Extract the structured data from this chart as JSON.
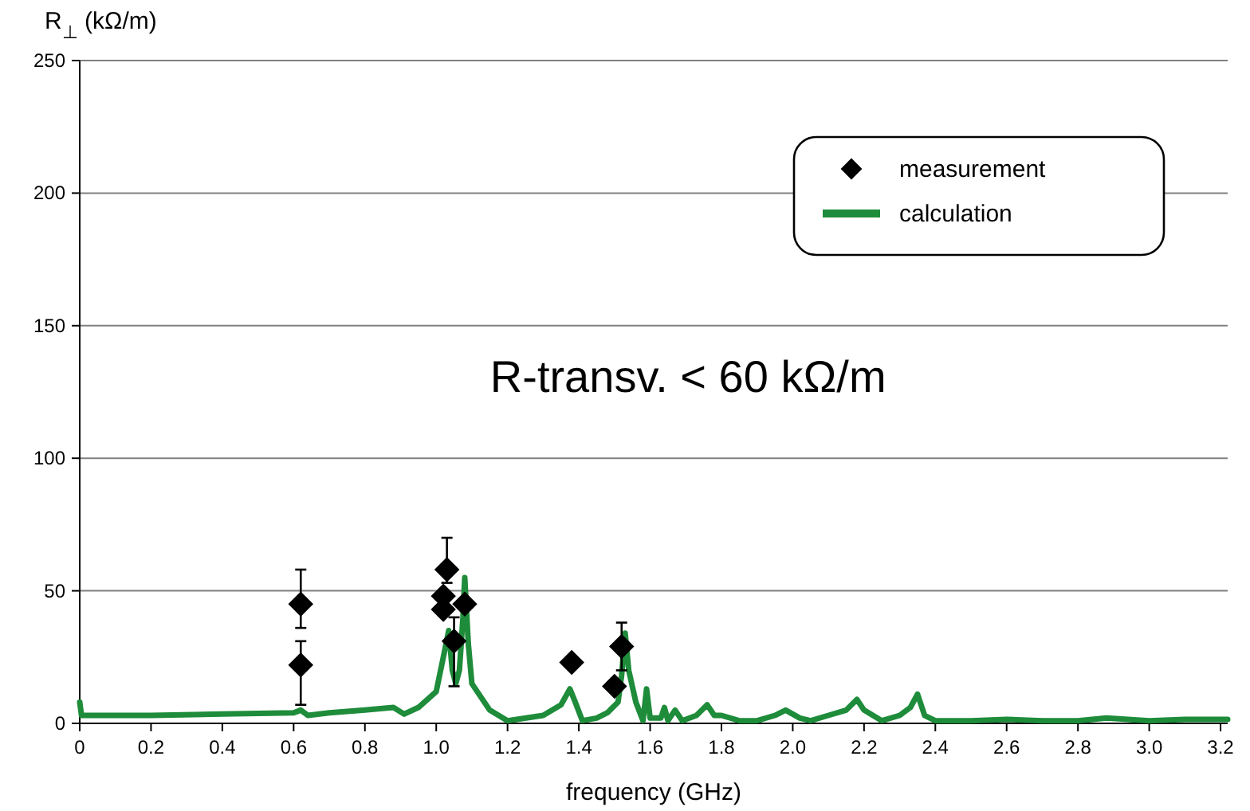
{
  "chart_data": {
    "type": "scatter",
    "xlabel": "frequency (GHz)",
    "ylabel": "R$_{⊥}$ (kΩ/m)",
    "annotations": [
      "R-transv. < 60 kΩ/m"
    ],
    "xlim": [
      0,
      3.22
    ],
    "xticks": [
      0,
      0.2,
      0.4,
      0.6,
      0.8,
      {
        "value": 1,
        "label": "1.0"
      },
      1.2,
      1.4,
      1.6,
      1.8,
      {
        "value": 2,
        "label": "2.0"
      },
      2.2,
      2.4,
      2.6,
      2.8,
      {
        "value": 3,
        "label": "3.0"
      },
      3.2
    ],
    "ylim": [
      0,
      250
    ],
    "yticks": [
      0,
      50,
      100,
      150,
      200,
      250
    ],
    "grid": "y",
    "legend": "top right",
    "series": [
      {
        "name": "measurement",
        "color": "#000000",
        "marker": "diamond",
        "x": [
          0.62,
          0.62,
          1.03,
          1.02,
          1.02,
          1.05,
          1.08,
          1.38,
          1.5,
          1.52
        ],
        "values": [
          45,
          22,
          58,
          48,
          43,
          31,
          45,
          23,
          14,
          29
        ],
        "errors": [
          [
            36,
            58
          ],
          [
            7,
            31
          ],
          [
            53,
            70
          ],
          null,
          null,
          [
            14,
            40
          ],
          null,
          null,
          null,
          [
            20,
            38
          ]
        ]
      },
      {
        "type": "line",
        "name": "calculation",
        "color": "#1e8c3a",
        "x": [
          0,
          0.005,
          0.2,
          0.4,
          0.6,
          0.62,
          0.64,
          0.7,
          0.8,
          0.88,
          0.91,
          0.95,
          1.0,
          1.02,
          1.035,
          1.045,
          1.055,
          1.065,
          1.075,
          1.08,
          1.09,
          1.1,
          1.15,
          1.2,
          1.3,
          1.35,
          1.375,
          1.39,
          1.41,
          1.45,
          1.48,
          1.51,
          1.52,
          1.53,
          1.54,
          1.56,
          1.58,
          1.59,
          1.6,
          1.63,
          1.64,
          1.65,
          1.67,
          1.69,
          1.73,
          1.76,
          1.78,
          1.8,
          1.85,
          1.9,
          1.95,
          1.98,
          2.02,
          2.05,
          2.1,
          2.15,
          2.18,
          2.2,
          2.25,
          2.3,
          2.33,
          2.35,
          2.37,
          2.4,
          2.5,
          2.6,
          2.7,
          2.8,
          2.88,
          3.0,
          3.1,
          3.22
        ],
        "values": [
          8,
          3,
          3,
          3.5,
          4,
          5,
          3,
          4,
          5,
          6,
          3.5,
          6,
          12,
          25,
          35,
          20,
          15,
          20,
          40,
          55,
          30,
          15,
          5,
          1,
          3,
          7,
          13,
          8,
          1,
          2,
          4,
          8,
          18,
          34,
          20,
          8,
          1,
          13,
          2,
          2,
          6,
          1,
          5,
          1,
          3,
          7,
          3,
          3,
          1,
          1,
          3,
          5,
          2,
          1,
          3,
          5,
          9,
          5,
          1,
          3,
          6,
          11,
          3,
          1,
          1,
          1.5,
          1,
          1,
          2,
          1,
          1.5,
          1.5
        ]
      }
    ]
  }
}
